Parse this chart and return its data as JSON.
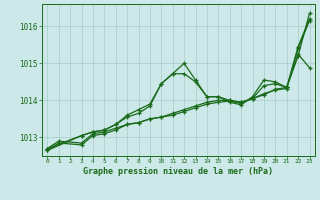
{
  "title": "Graphe pression niveau de la mer (hPa)",
  "background_color": "#cce8e8",
  "plot_bg_color": "#cce8e8",
  "line_color": "#1a6b1a",
  "grid_color": "#aacccc",
  "text_color": "#1a6b1a",
  "xlim": [
    -0.5,
    23.5
  ],
  "ylim": [
    1012.5,
    1016.6
  ],
  "yticks": [
    1013,
    1014,
    1015,
    1016
  ],
  "xticks": [
    0,
    1,
    2,
    3,
    4,
    5,
    6,
    7,
    8,
    9,
    10,
    11,
    12,
    13,
    14,
    15,
    16,
    17,
    18,
    19,
    20,
    21,
    22,
    23
  ],
  "series": [
    {
      "x": [
        0,
        1,
        3,
        4,
        5,
        6,
        7,
        8,
        9,
        10,
        11,
        12,
        13,
        14,
        15,
        16,
        17,
        18,
        19,
        20,
        21,
        22,
        23
      ],
      "y": [
        1012.7,
        1012.9,
        1012.85,
        1013.1,
        1013.15,
        1013.25,
        1013.35,
        1013.4,
        1013.5,
        1013.55,
        1013.65,
        1013.75,
        1013.85,
        1013.95,
        1014.0,
        1014.0,
        1013.95,
        1014.05,
        1014.15,
        1014.3,
        1014.35,
        1015.45,
        1016.2
      ]
    },
    {
      "x": [
        0,
        3,
        4,
        5,
        6,
        7,
        8,
        9,
        10,
        11,
        12,
        13,
        14,
        15,
        16,
        17,
        18,
        19,
        20,
        21,
        22,
        23
      ],
      "y": [
        1012.7,
        1013.05,
        1013.15,
        1013.2,
        1013.35,
        1013.6,
        1013.75,
        1013.9,
        1014.45,
        1014.72,
        1015.0,
        1014.55,
        1014.1,
        1014.1,
        1014.0,
        1013.95,
        1014.05,
        1014.4,
        1014.45,
        1014.35,
        1015.25,
        1014.88
      ]
    },
    {
      "x": [
        0,
        3,
        4,
        5,
        6,
        7,
        8,
        9,
        10,
        11,
        12,
        13,
        14,
        15,
        16,
        17,
        18,
        19,
        20,
        21,
        22,
        23
      ],
      "y": [
        1012.65,
        1013.05,
        1013.15,
        1013.2,
        1013.35,
        1013.55,
        1013.65,
        1013.85,
        1014.45,
        1014.72,
        1014.72,
        1014.5,
        1014.1,
        1014.1,
        1013.95,
        1013.88,
        1014.1,
        1014.55,
        1014.5,
        1014.35,
        1015.2,
        1016.35
      ]
    },
    {
      "x": [
        0,
        1,
        3,
        4,
        5,
        6,
        7,
        8,
        9,
        10,
        11,
        12,
        13,
        14,
        15,
        16,
        17,
        18,
        19,
        20,
        21,
        22,
        23
      ],
      "y": [
        1012.65,
        1012.85,
        1012.8,
        1013.05,
        1013.1,
        1013.2,
        1013.35,
        1013.4,
        1013.5,
        1013.55,
        1013.6,
        1013.7,
        1013.8,
        1013.9,
        1013.95,
        1013.98,
        1013.92,
        1014.05,
        1014.18,
        1014.28,
        1014.32,
        1015.4,
        1016.15
      ]
    }
  ]
}
